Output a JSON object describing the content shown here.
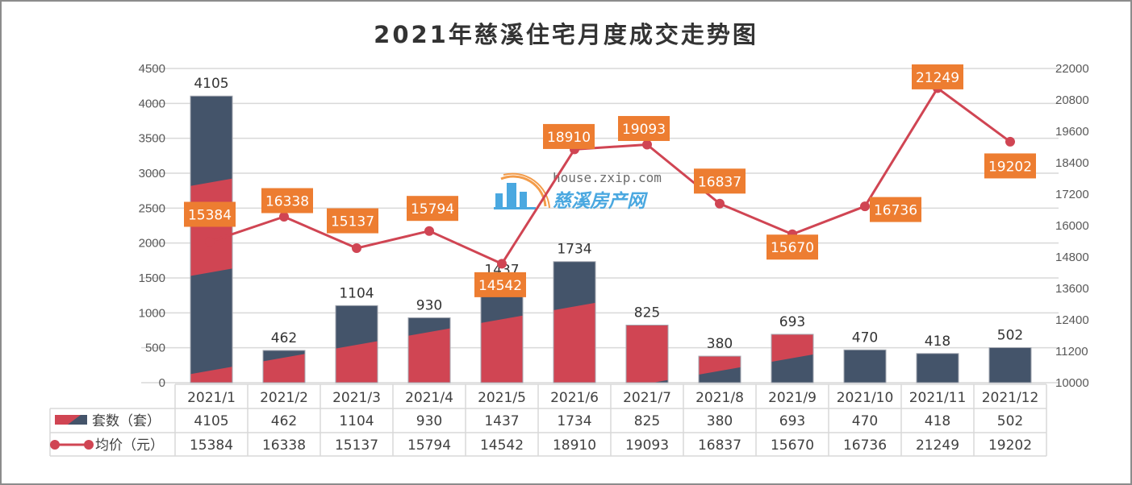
{
  "chart_data": {
    "type": "bar+line",
    "title": "2021年慈溪住宅月度成交走势图",
    "categories": [
      "2021/1",
      "2021/2",
      "2021/3",
      "2021/4",
      "2021/5",
      "2021/6",
      "2021/7",
      "2021/8",
      "2021/9",
      "2021/10",
      "2021/11",
      "2021/12"
    ],
    "series": [
      {
        "name": "套数（套）",
        "type": "bar",
        "axis": "left",
        "values": [
          4105,
          462,
          1104,
          930,
          1437,
          1734,
          825,
          380,
          693,
          470,
          418,
          502
        ]
      },
      {
        "name": "均价（元）",
        "type": "line",
        "axis": "right",
        "values": [
          15384,
          16338,
          15137,
          15794,
          14542,
          18910,
          19093,
          16837,
          15670,
          16736,
          21249,
          19202
        ]
      }
    ],
    "left_axis": {
      "ylim": [
        0,
        4500
      ],
      "ticks": [
        "0",
        "500",
        "1000",
        "1500",
        "2000",
        "2500",
        "3000",
        "3500",
        "4000",
        "4500"
      ]
    },
    "right_axis": {
      "ylim": [
        10000,
        22000
      ],
      "ticks": [
        "10000",
        "11200",
        "12400",
        "13600",
        "14800",
        "16000",
        "17200",
        "18400",
        "19600",
        "20800",
        "22000"
      ]
    },
    "grid": true,
    "legend": "data-table-bottom",
    "colors": {
      "bar_dark": "#44546a",
      "bar_red": "#d04553",
      "line": "#d04553",
      "price_label_bg": "#ed7d31",
      "grid": "#d9d9d9",
      "text": "#404040"
    }
  },
  "table": {
    "legend_bar": "套数（套）",
    "legend_line": "均价（元）"
  },
  "watermark": {
    "url": "house.zxip.com",
    "name": "慈溪房产网"
  }
}
